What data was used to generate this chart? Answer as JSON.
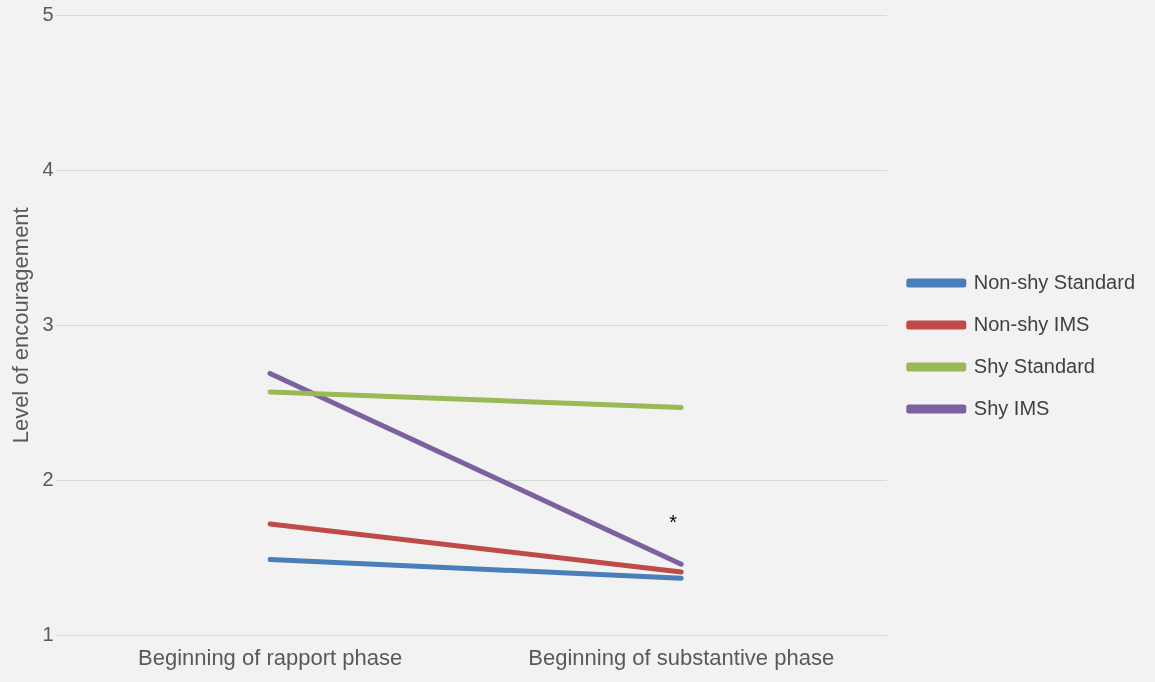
{
  "chart_data": {
    "type": "line",
    "ylabel": "Level of encouragement",
    "categories": [
      "Beginning of rapport phase",
      "Beginning of substantive phase"
    ],
    "series": [
      {
        "name": "Non-shy Standard",
        "color": "#4a7ebb",
        "values": [
          1.49,
          1.37
        ]
      },
      {
        "name": "Non-shy IMS",
        "color": "#be4b48",
        "values": [
          1.72,
          1.41
        ]
      },
      {
        "name": "Shy Standard",
        "color": "#98b954",
        "values": [
          2.57,
          2.47
        ]
      },
      {
        "name": "Shy IMS",
        "color": "#7d60a0",
        "values": [
          2.69,
          1.46
        ]
      }
    ],
    "ylim": [
      1,
      5
    ],
    "yticks": [
      1,
      2,
      3,
      4,
      5
    ],
    "grid": "y",
    "legend": "right",
    "marker": "none",
    "line_style": "solid",
    "annotations": [
      "*"
    ]
  }
}
